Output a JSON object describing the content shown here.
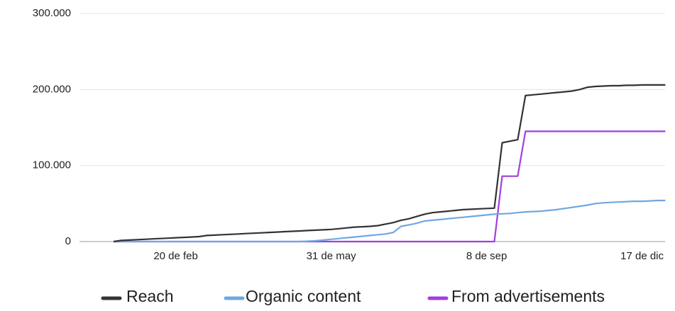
{
  "chart_data": {
    "type": "line",
    "categories": [
      null,
      null,
      null,
      null,
      null,
      null,
      null,
      null,
      "20 de feb",
      null,
      null,
      null,
      null,
      null,
      null,
      null,
      null,
      null,
      null,
      null,
      null,
      null,
      null,
      null,
      null,
      null,
      null,
      null,
      "31 de may",
      null,
      null,
      null,
      null,
      null,
      null,
      null,
      null,
      null,
      null,
      null,
      null,
      null,
      null,
      null,
      null,
      null,
      null,
      null,
      "8 de sep",
      null,
      null,
      null,
      null,
      null,
      null,
      null,
      null,
      null,
      null,
      null,
      null,
      null,
      null,
      null,
      null,
      null,
      null,
      null,
      "17 de dic",
      null,
      null,
      null
    ],
    "series": [
      {
        "name": "From advertisements",
        "color": "#a03fe0",
        "values": [
          0,
          0,
          0,
          0,
          0,
          0,
          0,
          0,
          0,
          0,
          0,
          0,
          0,
          0,
          0,
          0,
          0,
          0,
          0,
          0,
          0,
          0,
          0,
          0,
          0,
          0,
          0,
          0,
          0,
          0,
          0,
          0,
          0,
          0,
          0,
          0,
          0,
          0,
          0,
          0,
          0,
          0,
          0,
          0,
          0,
          0,
          0,
          0,
          0,
          0,
          86000,
          86000,
          86000,
          145000,
          145000,
          145000,
          145000,
          145000,
          145000,
          145000,
          145000,
          145000,
          145000,
          145000,
          145000,
          145000,
          145000,
          145000,
          145000,
          145000,
          145000,
          145000
        ]
      },
      {
        "name": "Organic content",
        "color": "#6fa8e0",
        "values": [
          0,
          0,
          0,
          0,
          0,
          0,
          0,
          0,
          0,
          0,
          0,
          0,
          0,
          0,
          0,
          0,
          0,
          0,
          0,
          0,
          0,
          0,
          0,
          0,
          0,
          500,
          1000,
          2000,
          3000,
          4000,
          5000,
          6000,
          7000,
          8000,
          9000,
          10000,
          12000,
          20000,
          22000,
          24000,
          27000,
          28000,
          29000,
          30000,
          31000,
          32000,
          33000,
          34000,
          35000,
          36000,
          36500,
          37000,
          38000,
          39000,
          39500,
          40000,
          41000,
          42000,
          43500,
          45000,
          46500,
          48000,
          50000,
          51000,
          51500,
          52000,
          52500,
          53000,
          53000,
          53500,
          54000,
          54000
        ]
      },
      {
        "name": "Reach",
        "color": "#333333",
        "values": [
          0,
          1500,
          2000,
          2500,
          3000,
          3500,
          4000,
          4500,
          5000,
          5500,
          6000,
          6500,
          8000,
          8500,
          9000,
          9500,
          10000,
          10500,
          11000,
          11500,
          12000,
          12500,
          13000,
          13500,
          14000,
          14500,
          15000,
          15500,
          16000,
          17000,
          18000,
          19000,
          19500,
          20000,
          21000,
          23000,
          25000,
          28000,
          30000,
          33000,
          36000,
          38000,
          39000,
          40000,
          41000,
          42000,
          42500,
          43000,
          43500,
          44000,
          130000,
          132000,
          134000,
          192000,
          193000,
          194000,
          195000,
          196000,
          197000,
          198000,
          200000,
          203000,
          204000,
          204500,
          205000,
          205000,
          205500,
          205500,
          206000,
          206000,
          206000,
          206000
        ]
      }
    ],
    "legend_order": [
      "Reach",
      "Organic content",
      "From advertisements"
    ],
    "ylim": [
      0,
      300000
    ],
    "yticks": [
      0,
      {
        "value": 100000,
        "label": "100.000"
      },
      {
        "value": 200000,
        "label": "200.000"
      },
      {
        "value": 300000,
        "label": "300.000"
      }
    ],
    "grid": true
  }
}
